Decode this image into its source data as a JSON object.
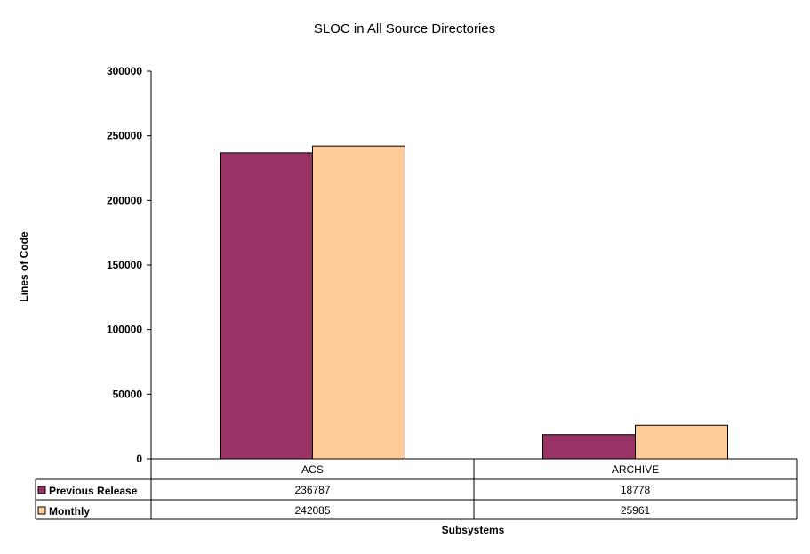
{
  "chart_data": {
    "type": "bar",
    "title": "SLOC in All Source Directories",
    "xlabel": "Subsystems",
    "ylabel": "Lines of Code",
    "ylim": [
      0,
      300000
    ],
    "yticks": [
      "0",
      "50000",
      "100000",
      "150000",
      "200000",
      "250000",
      "300000"
    ],
    "categories": [
      "ACS",
      "ARCHIVE"
    ],
    "series": [
      {
        "name": "Previous Release",
        "values": [
          236787,
          18778
        ],
        "labels": [
          "236787",
          "18778"
        ],
        "color": "#993366"
      },
      {
        "name": "Monthly",
        "values": [
          242085,
          25961
        ],
        "labels": [
          "242085",
          "25961"
        ],
        "color": "#FFCC99"
      }
    ],
    "grid": false,
    "legend": "data-table"
  }
}
